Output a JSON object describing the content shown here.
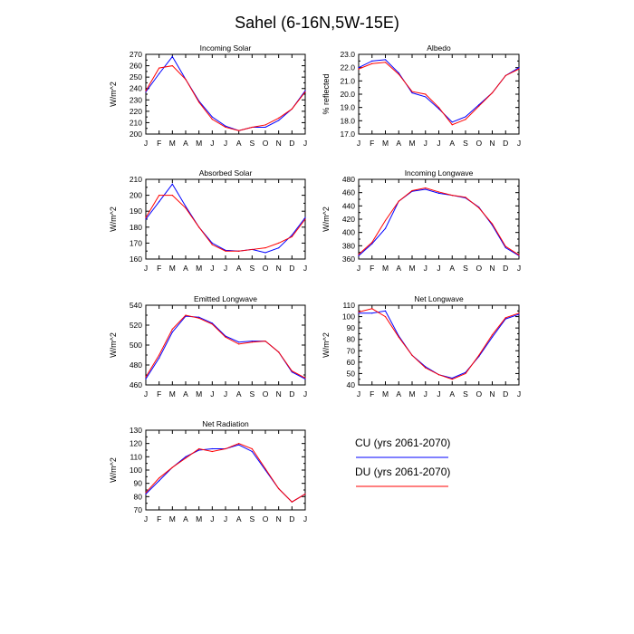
{
  "page": {
    "title": "Sahel (6-16N,5W-15E)"
  },
  "legend": {
    "placement": "right of bottom-left panel",
    "entries": [
      {
        "label": "CU (yrs 2061-2070)",
        "color": "#0000ff"
      },
      {
        "label": "DU (yrs 2061-2070)",
        "color": "#ff0000"
      }
    ]
  },
  "colors": {
    "cu": "#0000ff",
    "du": "#ff0000"
  },
  "chart_data": [
    {
      "type": "line",
      "title": "Incoming Solar",
      "xlabel": "",
      "ylabel": "W/m^2",
      "x": [
        "J",
        "F",
        "M",
        "A",
        "M",
        "J",
        "J",
        "A",
        "S",
        "O",
        "N",
        "D",
        "J"
      ],
      "ylim": [
        200,
        270
      ],
      "yticks": [
        200,
        210,
        220,
        230,
        240,
        250,
        260,
        270
      ],
      "grid": false,
      "series": [
        {
          "name": "CU (yrs 2061-2070)",
          "values": [
            237,
            253,
            268,
            248,
            229,
            215,
            207,
            203,
            206,
            206,
            212,
            222,
            238
          ]
        },
        {
          "name": "DU (yrs 2061-2070)",
          "values": [
            238,
            258,
            260,
            248,
            228,
            213,
            206,
            203,
            206,
            208,
            214,
            222,
            237
          ]
        }
      ]
    },
    {
      "type": "line",
      "title": "Albedo",
      "xlabel": "",
      "ylabel": "% reflected",
      "x": [
        "J",
        "F",
        "M",
        "A",
        "M",
        "J",
        "J",
        "A",
        "S",
        "O",
        "N",
        "D",
        "J"
      ],
      "ylim": [
        17.0,
        23.0
      ],
      "yticks": [
        "17.0",
        "18.0",
        "19.0",
        "20.0",
        "21.0",
        "22.0",
        "23.0"
      ],
      "grid": false,
      "series": [
        {
          "name": "CU (yrs 2061-2070)",
          "values": [
            22.0,
            22.5,
            22.6,
            21.6,
            20.1,
            19.8,
            18.9,
            17.9,
            18.3,
            19.2,
            20.1,
            21.4,
            22.0
          ]
        },
        {
          "name": "DU (yrs 2061-2070)",
          "values": [
            21.9,
            22.3,
            22.4,
            21.5,
            20.2,
            20.0,
            19.0,
            17.7,
            18.1,
            19.1,
            20.1,
            21.4,
            21.9
          ]
        }
      ]
    },
    {
      "type": "line",
      "title": "Absorbed Solar",
      "xlabel": "",
      "ylabel": "W/m^2",
      "x": [
        "J",
        "F",
        "M",
        "A",
        "M",
        "J",
        "J",
        "A",
        "S",
        "O",
        "N",
        "D",
        "J"
      ],
      "ylim": [
        160,
        210
      ],
      "yticks": [
        160,
        170,
        180,
        190,
        200,
        210
      ],
      "grid": false,
      "series": [
        {
          "name": "CU (yrs 2061-2070)",
          "values": [
            185,
            196,
            207,
            193,
            180,
            170,
            165.5,
            165,
            166,
            164,
            167,
            175,
            186
          ]
        },
        {
          "name": "DU (yrs 2061-2070)",
          "values": [
            186,
            200,
            200,
            192,
            180,
            169,
            165,
            165,
            166,
            167,
            170,
            174,
            185
          ]
        }
      ]
    },
    {
      "type": "line",
      "title": "Incoming Longwave",
      "xlabel": "",
      "ylabel": "W/m^2",
      "x": [
        "J",
        "F",
        "M",
        "A",
        "M",
        "J",
        "J",
        "A",
        "S",
        "O",
        "N",
        "D",
        "J"
      ],
      "ylim": [
        360,
        480
      ],
      "yticks": [
        360,
        380,
        400,
        420,
        440,
        460,
        480
      ],
      "grid": false,
      "series": [
        {
          "name": "CU (yrs 2061-2070)",
          "values": [
            365,
            383,
            406,
            447,
            462,
            465,
            459,
            456,
            452,
            438,
            411,
            377,
            365
          ]
        },
        {
          "name": "DU (yrs 2061-2070)",
          "values": [
            367,
            385,
            418,
            447,
            463,
            467,
            461,
            456,
            453,
            437,
            413,
            379,
            366
          ]
        }
      ]
    },
    {
      "type": "line",
      "title": "Emitted Longwave",
      "xlabel": "",
      "ylabel": "W/m^2",
      "x": [
        "J",
        "F",
        "M",
        "A",
        "M",
        "J",
        "J",
        "A",
        "S",
        "O",
        "N",
        "D",
        "J"
      ],
      "ylim": [
        460,
        540
      ],
      "yticks": [
        460,
        480,
        500,
        520,
        540
      ],
      "grid": false,
      "series": [
        {
          "name": "CU (yrs 2061-2070)",
          "values": [
            466,
            487,
            513,
            529,
            528,
            522,
            509,
            503,
            504,
            504,
            493,
            473,
            466
          ]
        },
        {
          "name": "DU (yrs 2061-2070)",
          "values": [
            468,
            490,
            516,
            530,
            527,
            521,
            508,
            501,
            503,
            504,
            493,
            474,
            467
          ]
        }
      ]
    },
    {
      "type": "line",
      "title": "Net Longwave",
      "xlabel": "",
      "ylabel": "W/m^2",
      "x": [
        "J",
        "F",
        "M",
        "A",
        "M",
        "J",
        "J",
        "A",
        "S",
        "O",
        "N",
        "D",
        "J"
      ],
      "ylim": [
        40,
        110
      ],
      "yticks": [
        40,
        50,
        60,
        70,
        80,
        90,
        100,
        110
      ],
      "grid": false,
      "series": [
        {
          "name": "CU (yrs 2061-2070)",
          "values": [
            103,
            103,
            105,
            83,
            66,
            56,
            49,
            46,
            51,
            65,
            82,
            98,
            102
          ]
        },
        {
          "name": "DU (yrs 2061-2070)",
          "values": [
            104,
            107,
            100,
            82,
            66,
            55,
            49,
            45,
            50,
            66,
            84,
            99,
            103
          ]
        }
      ]
    },
    {
      "type": "line",
      "title": "Net Radiation",
      "xlabel": "",
      "ylabel": "W/m^2",
      "x": [
        "J",
        "F",
        "M",
        "A",
        "M",
        "J",
        "J",
        "A",
        "S",
        "O",
        "N",
        "D",
        "J"
      ],
      "ylim": [
        70,
        130
      ],
      "yticks": [
        70,
        80,
        90,
        100,
        110,
        120,
        130
      ],
      "grid": false,
      "series": [
        {
          "name": "CU (yrs 2061-2070)",
          "values": [
            82,
            92,
            102,
            110,
            115,
            116,
            116,
            119,
            114,
            100,
            86,
            76,
            82
          ]
        },
        {
          "name": "DU (yrs 2061-2070)",
          "values": [
            83,
            94,
            102,
            109,
            116,
            114,
            116,
            120,
            116,
            101,
            86,
            76,
            82
          ]
        }
      ]
    }
  ]
}
